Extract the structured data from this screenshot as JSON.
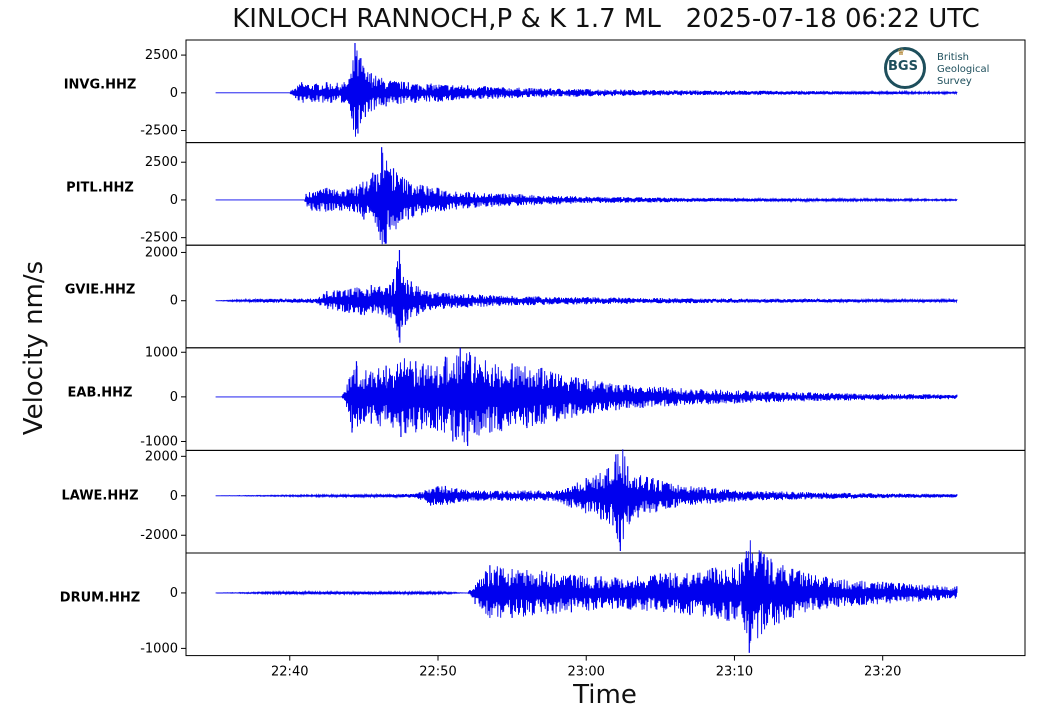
{
  "title": "KINLOCH RANNOCH,P & K 1.7 ML   2025-07-18 06:22 UTC",
  "logo": {
    "mark": "BGS",
    "lines": [
      "British",
      "Geological",
      "Survey"
    ],
    "icon": "bgs-crown-logo-icon"
  },
  "colors": {
    "trace": "#0000ee",
    "axes": "#000000",
    "background": "#ffffff"
  },
  "chart_data": {
    "type": "line",
    "title": "KINLOCH RANNOCH,P & K 1.7 ML   2025-07-18 06:22 UTC",
    "xlabel": "Time",
    "ylabel": "Velocity nm/s",
    "x_units": "minutes after 22:00",
    "xlim": [
      33.0,
      89.6
    ],
    "x_ticks": [
      {
        "value": 40,
        "label": "22:40"
      },
      {
        "value": 50,
        "label": "22:50"
      },
      {
        "value": 60,
        "label": "23:00"
      },
      {
        "value": 70,
        "label": "23:10"
      },
      {
        "value": 80,
        "label": "23:20"
      }
    ],
    "grid": false,
    "legend": "none",
    "series": [
      {
        "name": "INVG.HHZ",
        "ylim": [
          -3300,
          3500
        ],
        "y_ticks": [
          2500,
          0,
          -2500
        ],
        "y_tick_labels": [
          "2500",
          "0",
          "-2500"
        ],
        "x": [
          35.0,
          40.0,
          40.1,
          40.4,
          40.8,
          41.5,
          42.5,
          43.5,
          44.0,
          44.2,
          44.4,
          44.6,
          44.8,
          45.1,
          45.5,
          46.5,
          48,
          50,
          52,
          55,
          60,
          65,
          70,
          75,
          80,
          85
        ],
        "y": [
          0,
          0,
          150,
          -350,
          700,
          -600,
          700,
          -650,
          900,
          -1700,
          3300,
          -2700,
          2300,
          -1600,
          1300,
          -900,
          700,
          -600,
          500,
          -350,
          250,
          -180,
          150,
          -120,
          90,
          60
        ]
      },
      {
        "name": "PITL.HHZ",
        "ylim": [
          -3000,
          3800
        ],
        "y_ticks": [
          2500,
          0,
          -2500
        ],
        "y_tick_labels": [
          "2500",
          "0",
          "-2500"
        ],
        "x": [
          35.0,
          41.0,
          41.1,
          41.5,
          42.5,
          43.5,
          44.5,
          45.0,
          45.6,
          46.0,
          46.2,
          46.5,
          47.0,
          48,
          50,
          52,
          55,
          58,
          60,
          65,
          70,
          75,
          80,
          85
        ],
        "y": [
          0,
          0,
          400,
          -700,
          800,
          -700,
          900,
          -1300,
          1800,
          -2100,
          3500,
          -2900,
          2100,
          -1300,
          800,
          -550,
          400,
          -300,
          220,
          -160,
          120,
          -90,
          70,
          50
        ]
      },
      {
        "name": "GVIE.HHZ",
        "ylim": [
          -1950,
          2300
        ],
        "y_ticks": [
          2000,
          0
        ],
        "y_tick_labels": [
          "2000",
          "0"
        ],
        "x": [
          35.0,
          38.0,
          41.8,
          42.5,
          44.0,
          45.5,
          46.5,
          47.0,
          47.4,
          47.6,
          47.8,
          48.2,
          49,
          50,
          52,
          55,
          60,
          65,
          70,
          75,
          80,
          85
        ],
        "y": [
          0,
          80,
          -100,
          400,
          -500,
          650,
          -600,
          900,
          2100,
          -1000,
          -1000,
          800,
          -450,
          350,
          -280,
          200,
          -150,
          110,
          -90,
          70,
          60,
          50
        ]
      },
      {
        "name": "EAB.HHZ",
        "ylim": [
          -1200,
          1100
        ],
        "y_ticks": [
          1000,
          0,
          -1000
        ],
        "y_tick_labels": [
          "1000",
          "0",
          "-1000"
        ],
        "x": [
          35.0,
          43.5,
          44.0,
          44.2,
          44.5,
          45.5,
          46.5,
          47.5,
          48.5,
          49.5,
          50.5,
          51.0,
          51.5,
          52.0,
          52.5,
          53.5,
          55,
          56,
          57,
          58,
          60,
          62,
          65,
          70,
          75,
          80,
          85
        ],
        "y": [
          0,
          0,
          400,
          -800,
          800,
          -600,
          700,
          -900,
          800,
          -700,
          900,
          -1000,
          1100,
          -1100,
          900,
          -800,
          750,
          -700,
          650,
          -550,
          400,
          -300,
          220,
          -150,
          100,
          70,
          50
        ]
      },
      {
        "name": "LAWE.HHZ",
        "ylim": [
          -2900,
          2300
        ],
        "y_ticks": [
          2000,
          0,
          -2000
        ],
        "y_tick_labels": [
          "2000",
          "0",
          "-2000"
        ],
        "x": [
          35.0,
          48.5,
          49.5,
          50.5,
          52,
          54,
          56,
          58,
          59,
          60,
          61,
          61.5,
          61.8,
          62.0,
          62.3,
          62.8,
          63.5,
          64.5,
          66,
          68,
          70,
          75,
          80,
          85
        ],
        "y": [
          0,
          100,
          -500,
          500,
          -300,
          250,
          -280,
          260,
          -600,
          900,
          -1200,
          1400,
          -1500,
          2100,
          -2800,
          1500,
          -1100,
          900,
          -600,
          450,
          -300,
          180,
          -120,
          80
        ]
      },
      {
        "name": "DRUM.HHZ",
        "ylim": [
          -1130,
          720
        ],
        "y_ticks": [
          0,
          -1000
        ],
        "y_tick_labels": [
          "0",
          "-1000"
        ],
        "x": [
          35.0,
          40.0,
          45.0,
          50.0,
          52.0,
          52.5,
          53.5,
          55,
          57,
          59,
          61,
          63,
          65,
          67,
          68.5,
          69.5,
          70.5,
          71.0,
          72,
          73,
          75,
          77,
          80,
          85
        ],
        "y": [
          0,
          25,
          -25,
          25,
          0,
          -200,
          500,
          -450,
          400,
          -350,
          300,
          -300,
          350,
          -400,
          450,
          -500,
          550,
          -1080,
          700,
          -550,
          350,
          -250,
          200,
          120
        ]
      }
    ]
  }
}
